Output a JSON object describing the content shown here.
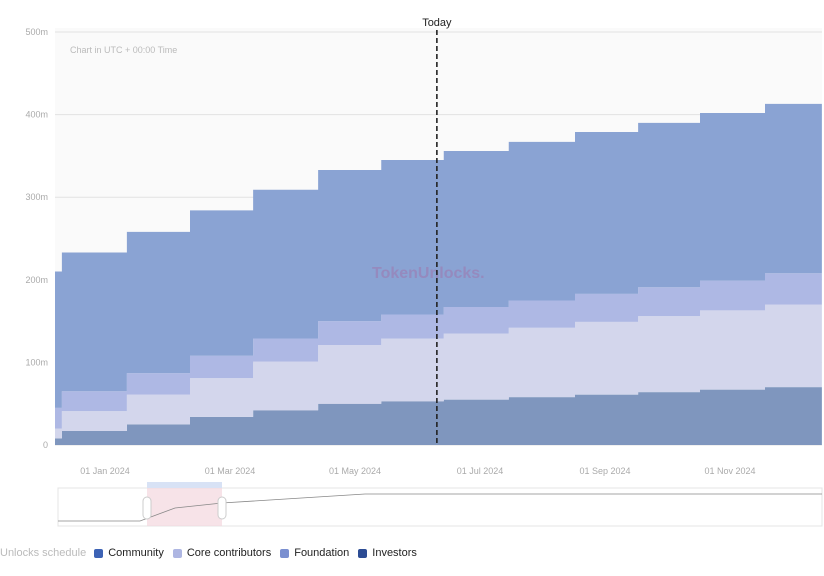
{
  "chart_data": {
    "type": "area",
    "stacked": true,
    "step": true,
    "note": "Chart in UTC + 00:00 Time",
    "today_label": "Today",
    "today_month_offset": 5.31,
    "x_unit": "months since 01 Jan 2024",
    "x_ticks": [
      {
        "m": 0,
        "label": "01 Jan 2024"
      },
      {
        "m": 2,
        "label": "01 Mar 2024"
      },
      {
        "m": 4,
        "label": "01 May 2024"
      },
      {
        "m": 6,
        "label": "01 Jul 2024"
      },
      {
        "m": 8,
        "label": "01 Sep 2024"
      },
      {
        "m": 10,
        "label": "01 Nov 2024"
      }
    ],
    "y_ticks": [
      "0",
      "100m",
      "200m",
      "300m",
      "400m",
      "500m"
    ],
    "ylim": [
      0,
      500
    ],
    "x_steps": [
      -0.8,
      -0.69,
      0.35,
      1.36,
      2.37,
      3.41,
      4.42,
      5.42,
      6.46,
      7.52,
      8.53,
      9.52,
      10.56
    ],
    "x_end": 11.47,
    "series": [
      {
        "name": "Investors",
        "color": "#7f96be",
        "values": [
          8,
          17,
          25,
          34,
          42,
          50,
          53,
          55,
          58,
          61,
          64,
          67,
          70
        ]
      },
      {
        "name": "Core contributors",
        "color": "#d3d6ec",
        "values": [
          12,
          24,
          36,
          47,
          59,
          71,
          76,
          80,
          84,
          88,
          92,
          96,
          100
        ]
      },
      {
        "name": "Community",
        "color": "#aeb8e4",
        "values": [
          25,
          24,
          26,
          27,
          28,
          29,
          29,
          32,
          33,
          34,
          35,
          36,
          38
        ]
      },
      {
        "name": "Foundation",
        "color": "#8aa3d3",
        "values": [
          165,
          168,
          171,
          176,
          180,
          183,
          187,
          189,
          192,
          196,
          199,
          203,
          205
        ]
      }
    ]
  },
  "watermark": "TokenUnlocks.",
  "legend": {
    "title": "Unlocks schedule",
    "items": [
      {
        "label": "Community",
        "color": "#3d63b5"
      },
      {
        "label": "Core contributors",
        "color": "#aeb6e2"
      },
      {
        "label": "Foundation",
        "color": "#7a8fd0"
      },
      {
        "label": "Investors",
        "color": "#2c4c94"
      }
    ]
  }
}
